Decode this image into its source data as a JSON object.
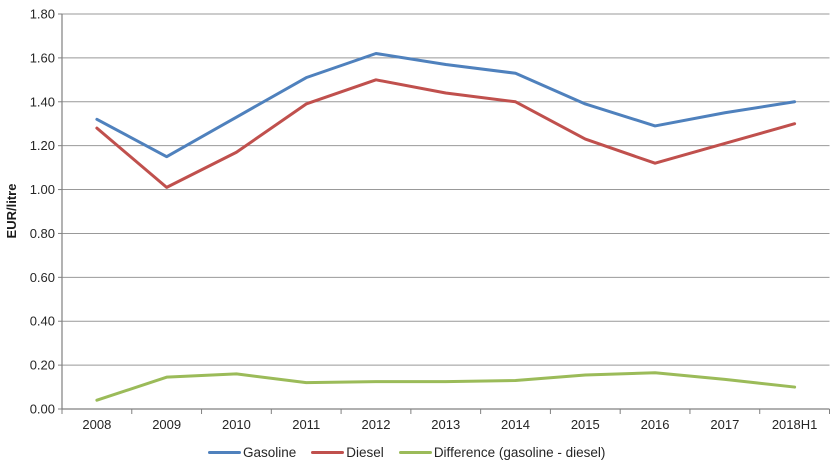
{
  "chart_data": {
    "type": "line",
    "title": "",
    "xlabel": "",
    "ylabel": "EUR/litre",
    "ylim": [
      0,
      1.8
    ],
    "ytick_step": 0.2,
    "ytick_labels": [
      "0.00",
      "0.20",
      "0.40",
      "0.60",
      "0.80",
      "1.00",
      "1.20",
      "1.40",
      "1.60",
      "1.80"
    ],
    "categories": [
      "2008",
      "2009",
      "2010",
      "2011",
      "2012",
      "2013",
      "2014",
      "2015",
      "2016",
      "2017",
      "2018H1"
    ],
    "series": [
      {
        "name": "Gasoline",
        "color": "#4F81BD",
        "values": [
          1.32,
          1.15,
          1.33,
          1.51,
          1.62,
          1.57,
          1.53,
          1.39,
          1.29,
          1.35,
          1.4
        ]
      },
      {
        "name": "Diesel",
        "color": "#C0504D",
        "values": [
          1.28,
          1.01,
          1.17,
          1.39,
          1.5,
          1.44,
          1.4,
          1.23,
          1.12,
          1.21,
          1.3
        ]
      },
      {
        "name": "Difference (gasoline - diesel)",
        "color": "#9BBB59",
        "values": [
          0.04,
          0.145,
          0.16,
          0.12,
          0.125,
          0.125,
          0.13,
          0.155,
          0.165,
          0.135,
          0.1
        ]
      }
    ],
    "grid": true,
    "legend_position": "bottom"
  },
  "colors": {
    "background": "#ffffff",
    "gridline": "#999999",
    "axis": "#808080",
    "tick_text": "#262626",
    "gasoline": "#4F81BD",
    "diesel": "#C0504D",
    "difference": "#9BBB59"
  }
}
